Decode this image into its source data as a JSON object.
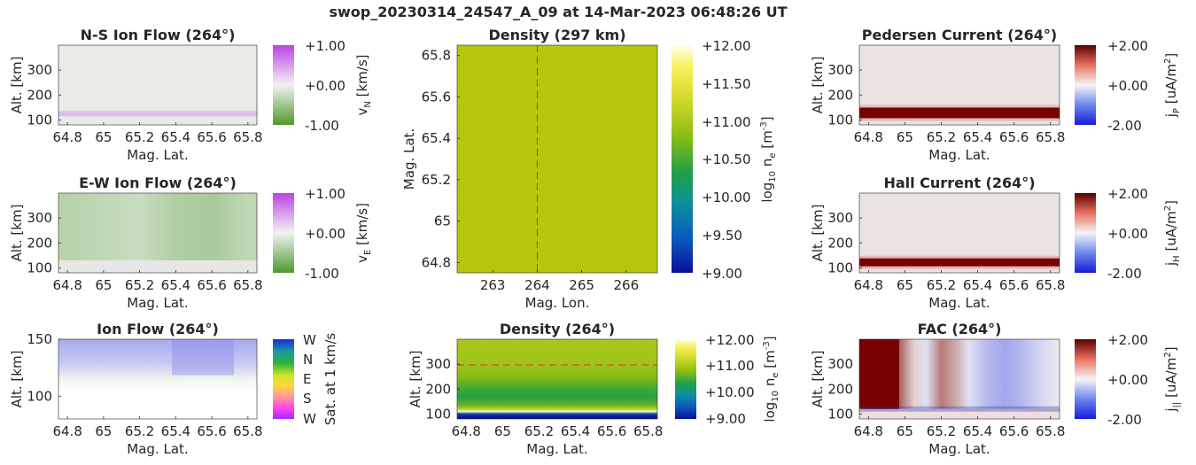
{
  "figure_title": "swop_20230314_24547_A_09 at 14-Mar-2023 06:48:26 UT",
  "colors": {
    "density_field": "#b6c60a",
    "dashed_marker": "#e8283a",
    "current_band": "#780000",
    "ion_flow_top": "#a7a9ef"
  },
  "colorbars": {
    "ion_flow_ns": {
      "ticks": [
        "+1.00",
        "+0.00",
        "-1.00"
      ],
      "label": "v",
      "sub": "N",
      "unit": " [km/s]"
    },
    "ion_flow_ew": {
      "ticks": [
        "+1.00",
        "+0.00",
        "-1.00"
      ],
      "label": "v",
      "sub": "E",
      "unit": " [km/s]"
    },
    "ion_flow_dir": {
      "ticks": [
        "W",
        "N",
        "E",
        "S",
        "W"
      ],
      "label": "Sat. at 1 km/s"
    },
    "density_map": {
      "ticks": [
        "+12.00",
        "+11.50",
        "+11.00",
        "+10.50",
        "+10.00",
        "+9.50",
        "+9.00"
      ],
      "label_pre": "log",
      "label_sub": "10",
      "label_mid": " n",
      "label_sub2": "e",
      "label_post": " [m",
      "label_sup": "-3",
      "label_end": "]"
    },
    "density_profile": {
      "ticks": [
        "+12.00",
        "+11.00",
        "+10.00",
        "+9.00"
      ],
      "label_pre": "log",
      "label_sub": "10",
      "label_mid": " n",
      "label_sub2": "e",
      "label_post": " [m",
      "label_sup": "-3",
      "label_end": "]"
    },
    "pedersen": {
      "ticks": [
        "+2.00",
        "+0.00",
        "-2.00"
      ],
      "label": "j",
      "sub": "P",
      "unit": " [uA/m",
      "sup": "2",
      "end": "]"
    },
    "hall": {
      "ticks": [
        "+2.00",
        "+0.00",
        "-2.00"
      ],
      "label": "j",
      "sub": "H",
      "unit": " [uA/m",
      "sup": "2",
      "end": "]"
    },
    "fac": {
      "ticks": [
        "+2.00",
        "+0.00",
        "-2.00"
      ],
      "label": "j",
      "sub": "||",
      "unit": " [uA/m",
      "sup": "2",
      "end": "]"
    }
  },
  "chart_data": [
    {
      "id": "ns_flow",
      "type": "heatmap",
      "title": "N-S Ion Flow (264°)",
      "xlabel": "Mag. Lat.",
      "ylabel": "Alt. [km]",
      "x_ticks": [
        "64.8",
        "65",
        "65.2",
        "65.4",
        "65.6",
        "65.8"
      ],
      "x_tick_values": [
        64.8,
        65.0,
        65.2,
        65.4,
        65.6,
        65.8
      ],
      "y_ticks": [
        "300",
        "200",
        "100"
      ],
      "y_tick_values": [
        300,
        200,
        100
      ],
      "xlim": [
        64.75,
        65.85
      ],
      "ylim": [
        80,
        400
      ],
      "description": "near-zero flow everywhere, weak positive band near 120 km",
      "band_alt_km": 125
    },
    {
      "id": "ew_flow",
      "type": "heatmap",
      "title": "E-W Ion Flow (264°)",
      "xlabel": "Mag. Lat.",
      "ylabel": "Alt. [km]",
      "x_ticks": [
        "64.8",
        "65",
        "65.2",
        "65.4",
        "65.6",
        "65.8"
      ],
      "x_tick_values": [
        64.8,
        65.0,
        65.2,
        65.4,
        65.6,
        65.8
      ],
      "y_ticks": [
        "300",
        "200",
        "100"
      ],
      "y_tick_values": [
        300,
        200,
        100
      ],
      "xlim": [
        64.75,
        65.85
      ],
      "ylim": [
        80,
        400
      ],
      "values_by_lat": {
        "lat": [
          64.8,
          65.0,
          65.2,
          65.4,
          65.6,
          65.8
        ],
        "v_e_kms": [
          -0.35,
          -0.3,
          -0.25,
          -0.4,
          -0.45,
          -0.3
        ]
      },
      "lower_alt_km": 130
    },
    {
      "id": "dir_flow",
      "type": "heatmap",
      "title": "Ion Flow (264°)",
      "xlabel": "Mag. Lat.",
      "ylabel": "Alt. [km]",
      "x_ticks": [
        "64.8",
        "65",
        "65.2",
        "65.4",
        "65.6",
        "65.8"
      ],
      "x_tick_values": [
        64.8,
        65.0,
        65.2,
        65.4,
        65.6,
        65.8
      ],
      "y_ticks": [
        "150",
        "100"
      ],
      "y_tick_values": [
        150,
        100
      ],
      "xlim": [
        64.75,
        65.85
      ],
      "ylim": [
        80,
        150
      ]
    },
    {
      "id": "density_map",
      "type": "heatmap",
      "title": "Density (297 km)",
      "xlabel": "Mag. Lon.",
      "ylabel": "Mag. Lat.",
      "x_ticks": [
        "263",
        "264",
        "265",
        "266"
      ],
      "x_tick_values": [
        263,
        264,
        265,
        266
      ],
      "y_ticks": [
        "65.8",
        "65.6",
        "65.4",
        "65.2",
        "65",
        "64.8"
      ],
      "y_tick_values": [
        65.8,
        65.6,
        65.4,
        65.2,
        65.0,
        64.8
      ],
      "xlim": [
        262.2,
        266.7
      ],
      "ylim": [
        64.75,
        65.85
      ],
      "log10_ne": 10.85,
      "marker_lon": 264
    },
    {
      "id": "density_profile",
      "type": "heatmap",
      "title": "Density (264°)",
      "xlabel": "Mag. Lat.",
      "ylabel": "Alt. [km]",
      "x_ticks": [
        "64.8",
        "65",
        "65.2",
        "65.4",
        "65.6",
        "65.8"
      ],
      "x_tick_values": [
        64.8,
        65.0,
        65.2,
        65.4,
        65.6,
        65.8
      ],
      "y_ticks": [
        "300",
        "200",
        "100"
      ],
      "y_tick_values": [
        300,
        200,
        100
      ],
      "xlim": [
        64.75,
        65.85
      ],
      "ylim": [
        80,
        400
      ],
      "marker_alt_km": 297,
      "profile": {
        "alt_km": [
          85,
          100,
          110,
          120,
          140,
          170,
          200,
          250,
          300,
          400
        ],
        "log10_ne": [
          9.0,
          9.3,
          11.9,
          11.0,
          10.5,
          10.3,
          10.4,
          10.7,
          10.85,
          10.9
        ]
      }
    },
    {
      "id": "pedersen",
      "type": "heatmap",
      "title": "Pedersen Current (264°)",
      "xlabel": "Mag. Lat.",
      "ylabel": "Alt. [km]",
      "x_ticks": [
        "64.8",
        "65",
        "65.2",
        "65.4",
        "65.6",
        "65.8"
      ],
      "x_tick_values": [
        64.8,
        65.0,
        65.2,
        65.4,
        65.6,
        65.8
      ],
      "y_ticks": [
        "300",
        "200",
        "100"
      ],
      "y_tick_values": [
        300,
        200,
        100
      ],
      "xlim": [
        64.75,
        65.85
      ],
      "ylim": [
        80,
        400
      ],
      "band_alt_km": 128,
      "band_value": 2.0,
      "background_value": 0.15
    },
    {
      "id": "hall",
      "type": "heatmap",
      "title": "Hall Current (264°)",
      "xlabel": "Mag. Lat.",
      "ylabel": "Alt. [km]",
      "x_ticks": [
        "64.8",
        "65",
        "65.2",
        "65.4",
        "65.6",
        "65.8"
      ],
      "x_tick_values": [
        64.8,
        65.0,
        65.2,
        65.4,
        65.6,
        65.8
      ],
      "y_ticks": [
        "300",
        "200",
        "100"
      ],
      "y_tick_values": [
        300,
        200,
        100
      ],
      "xlim": [
        64.75,
        65.85
      ],
      "ylim": [
        80,
        400
      ],
      "band_alt_km": 122,
      "band_value": 2.0,
      "background_value": 0.15
    },
    {
      "id": "fac",
      "type": "heatmap",
      "title": "FAC (264°)",
      "xlabel": "Mag. Lat.",
      "ylabel": "Alt. [km]",
      "x_ticks": [
        "64.8",
        "65",
        "65.2",
        "65.4",
        "65.6",
        "65.8"
      ],
      "x_tick_values": [
        64.8,
        65.0,
        65.2,
        65.4,
        65.6,
        65.8
      ],
      "y_ticks": [
        "300",
        "200",
        "100"
      ],
      "y_tick_values": [
        300,
        200,
        100
      ],
      "xlim": [
        64.75,
        65.85
      ],
      "ylim": [
        80,
        400
      ],
      "values_by_lat": {
        "lat": [
          64.75,
          64.8,
          64.88,
          64.97,
          65.05,
          65.12,
          65.2,
          65.28,
          65.35,
          65.45,
          65.55,
          65.65,
          65.75,
          65.85
        ],
        "j_par": [
          2.0,
          2.0,
          2.0,
          1.2,
          0.3,
          -0.2,
          1.0,
          0.6,
          -0.2,
          -0.6,
          -0.8,
          -0.6,
          -0.3,
          -0.1
        ]
      }
    }
  ]
}
